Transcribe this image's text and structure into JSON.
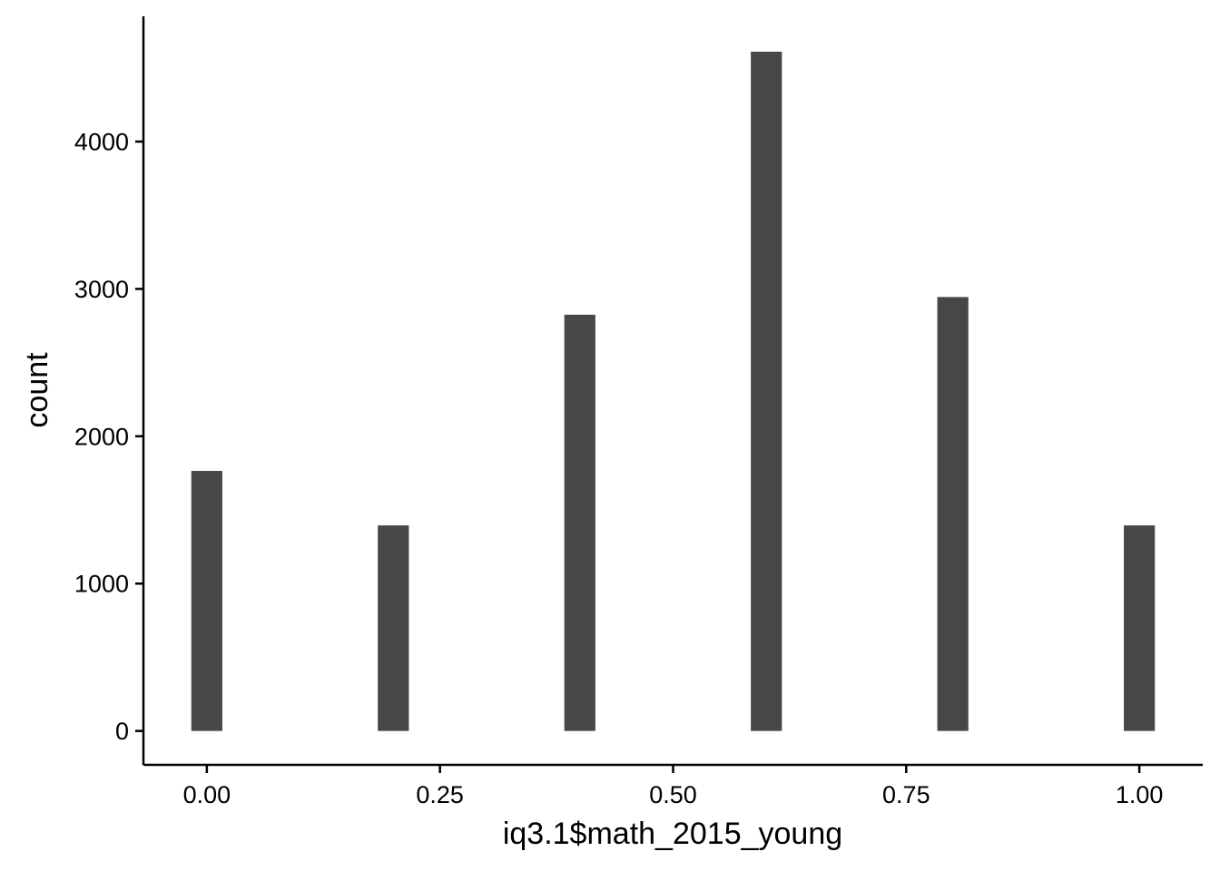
{
  "chart_data": {
    "type": "bar",
    "xlabel": "iq3.1$math_2015_young",
    "ylabel": "count",
    "x": [
      0.0,
      0.2,
      0.4,
      0.6,
      0.8,
      1.0
    ],
    "values": [
      1765,
      1395,
      2825,
      4610,
      2945,
      1395
    ],
    "bin_width": 0.0333,
    "xlim": [
      -0.068,
      1.068
    ],
    "ylim": [
      -230,
      4850
    ],
    "x_ticks": [
      0.0,
      0.25,
      0.5,
      0.75,
      1.0
    ],
    "x_tick_labels": [
      "0.00",
      "0.25",
      "0.50",
      "0.75",
      "1.00"
    ],
    "y_ticks": [
      0,
      1000,
      2000,
      3000,
      4000
    ],
    "y_tick_labels": [
      "0",
      "1000",
      "2000",
      "3000",
      "4000"
    ],
    "grid": false,
    "bar_color": "#474747",
    "axis_color": "#000000"
  }
}
